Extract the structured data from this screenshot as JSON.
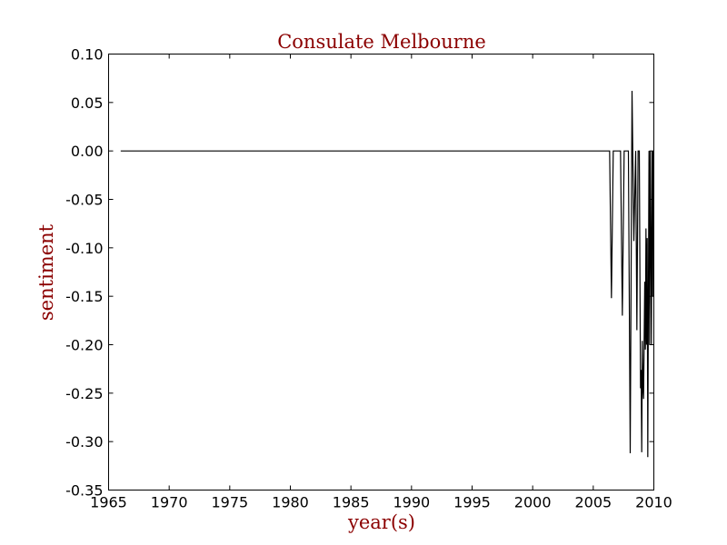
{
  "chart_data": {
    "type": "line",
    "title": "Consulate Melbourne",
    "xlabel": "year(s)",
    "ylabel": "sentiment",
    "xlim": [
      1965,
      2010
    ],
    "ylim": [
      -0.35,
      0.1
    ],
    "grid": false,
    "label_color": "#8b0000",
    "line_color": "#000000",
    "x_ticks": [
      1965,
      1970,
      1975,
      1980,
      1985,
      1990,
      1995,
      2000,
      2005,
      2010
    ],
    "y_ticks": [
      0.1,
      0.05,
      0.0,
      -0.05,
      -0.1,
      -0.15,
      -0.2,
      -0.25,
      -0.3,
      -0.35
    ],
    "series": [
      {
        "x": [
          1966.0,
          2006.2,
          2006.35,
          2006.5,
          2006.65,
          2007.1,
          2007.25,
          2007.4,
          2007.55,
          2007.9,
          2008.05,
          2008.2,
          2008.35,
          2008.5,
          2008.6,
          2008.7,
          2008.8,
          2008.9,
          2008.95,
          2009.0,
          2009.05,
          2009.1,
          2009.15,
          2009.2,
          2009.25,
          2009.3,
          2009.35,
          2009.4,
          2009.45,
          2009.5,
          2009.55,
          2009.6,
          2009.65,
          2009.7,
          2009.75,
          2009.8,
          2009.85,
          2009.9,
          2009.95
        ],
        "y": [
          0.0,
          0.0,
          0.0,
          -0.152,
          0.0,
          0.0,
          0.0,
          -0.17,
          0.0,
          0.0,
          -0.312,
          0.062,
          -0.093,
          0.0,
          -0.185,
          0.0,
          0.0,
          -0.245,
          -0.226,
          -0.311,
          -0.196,
          -0.245,
          -0.256,
          -0.196,
          -0.135,
          -0.205,
          -0.08,
          -0.2,
          -0.09,
          -0.316,
          -0.15,
          0.0,
          -0.2,
          0.0,
          -0.1,
          -0.2,
          0.0,
          -0.15,
          0.0
        ]
      }
    ]
  }
}
